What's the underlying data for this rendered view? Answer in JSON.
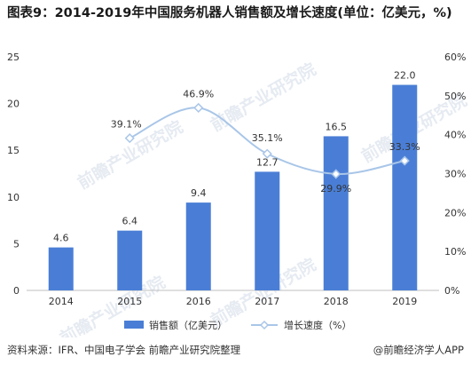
{
  "title": "图表9：2014-2019年中国服务机器人销售额及增长速度(单位：亿美元，%)",
  "source": "资料来源：IFR、中国电子学会 前瞻产业研究院整理",
  "brand": "@前瞻经济学人APP",
  "watermark": "前瞻产业研究院",
  "colors": {
    "bar": "#4a7ed6",
    "line": "#a9c6e8",
    "marker": "#a9c6e8"
  },
  "chart_data": {
    "type": "bar",
    "categories": [
      "2014",
      "2015",
      "2016",
      "2017",
      "2018",
      "2019"
    ],
    "y_left": {
      "ticks": [
        "0",
        "5",
        "10",
        "15",
        "20",
        "25"
      ],
      "range": [
        0,
        25
      ]
    },
    "y_right": {
      "ticks": [
        "0%",
        "10%",
        "20%",
        "30%",
        "40%",
        "50%",
        "60%"
      ],
      "range": [
        0,
        60
      ]
    },
    "series": [
      {
        "name": "销售额（亿美元）",
        "type": "bar",
        "axis": "left",
        "values": [
          4.6,
          6.4,
          9.4,
          12.7,
          16.5,
          22.0
        ],
        "labels": [
          "4.6",
          "6.4",
          "9.4",
          "12.7",
          "16.5",
          "22.0"
        ]
      },
      {
        "name": "增长速度（%）",
        "type": "line",
        "axis": "right",
        "values": [
          null,
          39.1,
          46.9,
          35.1,
          29.9,
          33.3
        ],
        "labels": [
          "",
          "39.1%",
          "46.9%",
          "35.1%",
          "29.9%",
          "33.3%"
        ]
      }
    ]
  }
}
